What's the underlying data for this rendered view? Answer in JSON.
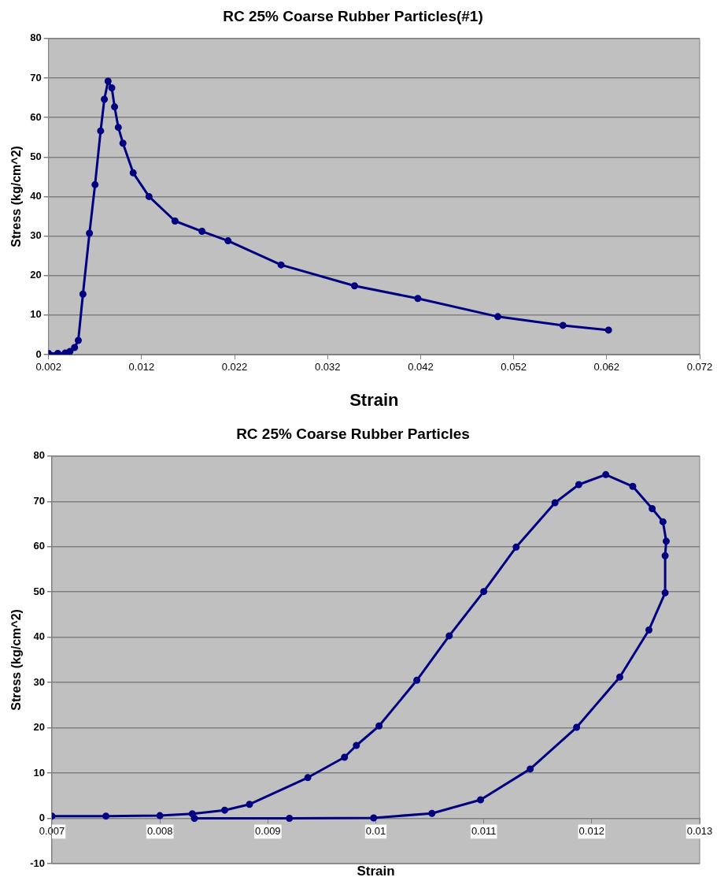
{
  "chart_data": [
    {
      "type": "line",
      "title": "RC 25% Coarse Rubber Particles(#1)",
      "xlabel": "Strain",
      "ylabel": "Stress (kg/cm^2)",
      "marker": "circle",
      "grid": "y",
      "legend": false,
      "xlim": [
        0.002,
        0.072
      ],
      "xticks": [
        0.002,
        0.012,
        0.022,
        0.032,
        0.042,
        0.052,
        0.062,
        0.072
      ],
      "ylim": [
        0,
        80
      ],
      "yticks": [
        0,
        10,
        20,
        30,
        40,
        50,
        60,
        70,
        80
      ],
      "series": [
        {
          "color": "#000080",
          "x": [
            0.002,
            0.003,
            0.0038,
            0.0043,
            0.0048,
            0.0052,
            0.0057,
            0.0064,
            0.007,
            0.0076,
            0.008,
            0.0084,
            0.0088,
            0.0091,
            0.0095,
            0.01,
            0.0111,
            0.0128,
            0.0156,
            0.0185,
            0.0213,
            0.027,
            0.0349,
            0.0417,
            0.0503,
            0.0573,
            0.0622
          ],
          "values": [
            0.3,
            0.3,
            0.4,
            0.8,
            1.8,
            3.6,
            15.3,
            30.7,
            43,
            56.6,
            64.6,
            69.2,
            67.5,
            62.7,
            57.5,
            53.5,
            46,
            40,
            33.8,
            31.2,
            28.8,
            22.7,
            17.4,
            14.2,
            9.6,
            7.4,
            6.2
          ]
        }
      ]
    },
    {
      "type": "line",
      "title": "RC 25% Coarse Rubber Particles",
      "xlabel": "Strain",
      "ylabel": "Stress (kg/cm^2)",
      "marker": "circle",
      "grid": "y",
      "legend": false,
      "xlim": [
        0.007,
        0.013
      ],
      "xticks": [
        0.007,
        0.008,
        0.009,
        0.01,
        0.011,
        0.012,
        0.013
      ],
      "ylim": [
        -10,
        80
      ],
      "yticks": [
        -10,
        0,
        10,
        20,
        30,
        40,
        50,
        60,
        70,
        80
      ],
      "series": [
        {
          "color": "#000080",
          "x": [
            0.007,
            0.0075,
            0.008,
            0.0083,
            0.0086,
            0.00883,
            0.00937,
            0.00971,
            0.00982,
            0.01003,
            0.01038,
            0.01068,
            0.011,
            0.0113,
            0.01166,
            0.01188,
            0.01213,
            0.01238,
            0.01256,
            0.01266,
            0.01269,
            0.01268,
            0.01268,
            0.01253,
            0.01226,
            0.01186,
            0.01143,
            0.01097,
            0.01052,
            0.00998,
            0.0092,
            0.00832
          ],
          "values": [
            0.5,
            0.5,
            0.6,
            1,
            1.8,
            3.1,
            9,
            13.5,
            16.1,
            20.4,
            30.5,
            40.3,
            50.1,
            59.9,
            69.7,
            73.7,
            75.9,
            73.3,
            68.4,
            65.5,
            61.2,
            58,
            49.8,
            41.6,
            31.2,
            20.1,
            10.9,
            4.1,
            1.1,
            0.1,
            0,
            0
          ]
        }
      ]
    }
  ]
}
